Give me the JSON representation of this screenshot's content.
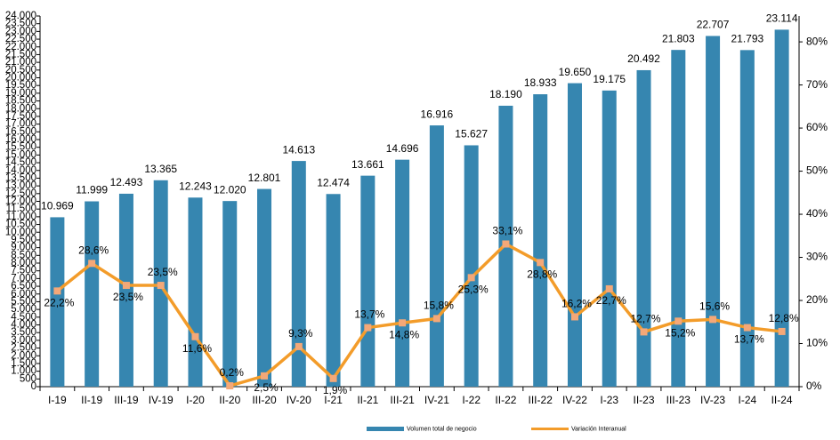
{
  "chart_data": {
    "type": "combo",
    "categories": [
      "I-19",
      "II-19",
      "III-19",
      "IV-19",
      "I-20",
      "II-20",
      "III-20",
      "IV-20",
      "I-21",
      "II-21",
      "III-21",
      "IV-21",
      "I-22",
      "II-22",
      "III-22",
      "IV-22",
      "I-23",
      "II-23",
      "III-23",
      "IV-23",
      "I-24",
      "II-24"
    ],
    "series": [
      {
        "name": "Volumen total de negocio",
        "type": "bar",
        "color": "#3686b0",
        "values": [
          10969,
          11999,
          12493,
          13365,
          12243,
          12020,
          12801,
          14613,
          12474,
          13661,
          14696,
          16916,
          15627,
          18190,
          18933,
          19650,
          19175,
          20492,
          21803,
          22707,
          21793,
          23114
        ],
        "value_labels": [
          "10.969",
          "11.999",
          "12.493",
          "13.365",
          "12.243",
          "12.020",
          "12.801",
          "14.613",
          "12.474",
          "13.661",
          "14.696",
          "16.916",
          "15.627",
          "18.190",
          "18.933",
          "19.650",
          "19.175",
          "20.492",
          "21.803",
          "22.707",
          "21.793",
          "23.114"
        ]
      },
      {
        "name": "Variación Interanual",
        "type": "line",
        "axis": "y2",
        "color": "#f39c2a",
        "marker_color": "#f4a878",
        "values": [
          22.2,
          28.6,
          23.5,
          23.5,
          11.6,
          0.2,
          2.5,
          9.3,
          1.9,
          13.7,
          14.8,
          15.8,
          25.3,
          33.1,
          28.8,
          16.2,
          22.7,
          12.7,
          15.2,
          15.6,
          13.7,
          12.8
        ],
        "value_labels": [
          "22,2%",
          "28,6%",
          "23,5%",
          "23,5%",
          "11,6%",
          "0,2%",
          "2,5%",
          "9,3%",
          "1,9%",
          "13,7%",
          "14,8%",
          "15,8%",
          "25,3%",
          "33,1%",
          "28,8%",
          "16,2%",
          "22,7%",
          "12,7%",
          "15,2%",
          "15,6%",
          "13,7%",
          "12,8%"
        ]
      }
    ],
    "ylim": [
      0,
      24000
    ],
    "yticks": [
      0,
      500,
      {
        "value": 1000,
        "label": "1.000"
      },
      {
        "value": 1500,
        "label": "1.500"
      },
      {
        "value": 2000,
        "label": "2.000"
      },
      {
        "value": 2500,
        "label": "2.500"
      },
      {
        "value": 3000,
        "label": "3.000"
      },
      {
        "value": 3500,
        "label": "3.500"
      },
      {
        "value": 4000,
        "label": "4.000"
      },
      {
        "value": 4500,
        "label": "4.500"
      },
      {
        "value": 5000,
        "label": "5.000"
      },
      {
        "value": 5500,
        "label": "5.500"
      },
      {
        "value": 6000,
        "label": "6.000"
      },
      {
        "value": 6500,
        "label": "6.500"
      },
      {
        "value": 7000,
        "label": "7.000"
      },
      {
        "value": 7500,
        "label": "7.500"
      },
      {
        "value": 8000,
        "label": "8.000"
      },
      {
        "value": 8500,
        "label": "8.500"
      },
      {
        "value": 9000,
        "label": "9.000"
      },
      {
        "value": 9500,
        "label": "9.500"
      },
      {
        "value": 10000,
        "label": "10.000"
      },
      {
        "value": 10500,
        "label": "10.500"
      },
      {
        "value": 11000,
        "label": "11.000"
      },
      {
        "value": 11500,
        "label": "11.500"
      },
      {
        "value": 12000,
        "label": "12.000"
      },
      {
        "value": 12500,
        "label": "12.500"
      },
      {
        "value": 13000,
        "label": "13.000"
      },
      {
        "value": 13500,
        "label": "13.500"
      },
      {
        "value": 14000,
        "label": "14.000"
      },
      {
        "value": 14500,
        "label": "14.500"
      },
      {
        "value": 15000,
        "label": "15.000"
      },
      {
        "value": 15500,
        "label": "15.500"
      },
      {
        "value": 16000,
        "label": "16.000"
      },
      {
        "value": 16500,
        "label": "16.500"
      },
      {
        "value": 17000,
        "label": "17.000"
      },
      {
        "value": 17500,
        "label": "17.500"
      },
      {
        "value": 18000,
        "label": "18.000"
      },
      {
        "value": 18500,
        "label": "18.500"
      },
      {
        "value": 19000,
        "label": "19.000"
      },
      {
        "value": 19500,
        "label": "19.500"
      },
      {
        "value": 20000,
        "label": "20.000"
      },
      {
        "value": 20500,
        "label": "20.500"
      },
      {
        "value": 21000,
        "label": "21.000"
      },
      {
        "value": 21500,
        "label": "21.500"
      },
      {
        "value": 22000,
        "label": "22.000"
      },
      {
        "value": 22500,
        "label": "22.500"
      },
      {
        "value": 23000,
        "label": "23.000"
      },
      {
        "value": 23500,
        "label": "23.500"
      },
      {
        "value": 24000,
        "label": "24.000"
      }
    ],
    "y2lim": [
      0,
      86
    ],
    "y2ticks": [
      {
        "value": 0,
        "label": "0%"
      },
      {
        "value": 10,
        "label": "10%"
      },
      {
        "value": 20,
        "label": "20%"
      },
      {
        "value": 30,
        "label": "30%"
      },
      {
        "value": 40,
        "label": "40%"
      },
      {
        "value": 50,
        "label": "50%"
      },
      {
        "value": 60,
        "label": "60%"
      },
      {
        "value": 70,
        "label": "70%"
      },
      {
        "value": 80,
        "label": "80%"
      }
    ],
    "legend": "bottom"
  }
}
